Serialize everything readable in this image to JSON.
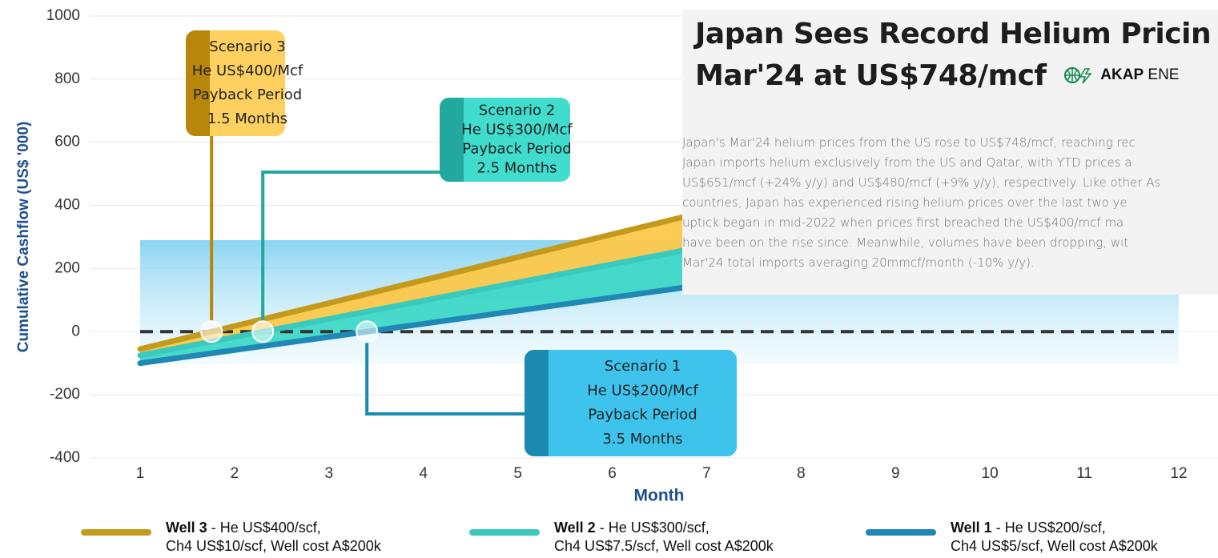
{
  "chart_data": {
    "type": "line",
    "y_label": "Cumulative Cashflow (US$ '000)",
    "x_label": "Month",
    "x": [
      1,
      12
    ],
    "xlim": [
      1,
      12
    ],
    "xticks": [
      1,
      2,
      3,
      4,
      5,
      6,
      7,
      8,
      9,
      10,
      11,
      12
    ],
    "ylim": [
      -400,
      1000
    ],
    "yticks": [
      -400,
      -200,
      0,
      200,
      400,
      600,
      800,
      1000
    ],
    "grid": true,
    "series": [
      {
        "name": "Well 3",
        "description": "- He US$400/scf,",
        "description2": "Ch4 US$10/scf, Well cost A$200k",
        "color": "#c49a1c",
        "fill": "#fcc84a",
        "values": [
          -55,
          745
        ]
      },
      {
        "name": "Well 2",
        "description": "- He US$300/scf,",
        "description2": "Ch4 US$7.5/scf, Well cost A$200k",
        "color": "#3cc9bd",
        "fill": "#3fd8c8",
        "values": [
          -75,
          560
        ]
      },
      {
        "name": "Well 1",
        "description": "- He US$200/scf,",
        "description2": "Ch4 US$5/scf, Well cost A$200k",
        "color": "#1f88b5",
        "fill": "#8fd3ee",
        "values": [
          -100,
          358
        ]
      }
    ],
    "annotations": [
      {
        "lines": [
          "Scenario 3",
          "He US$400/Mcf",
          "Payback Period",
          "1.5 Months"
        ],
        "color": "#fdd060",
        "strip": "#b8860b"
      },
      {
        "lines": [
          "Scenario 2",
          "He US$300/Mcf",
          "Payback Period",
          "2.5 Months"
        ],
        "color": "#40dccd",
        "strip": "#22a89e"
      },
      {
        "lines": [
          "Scenario 1",
          "He US$200/Mcf",
          "Payback Period",
          "3.5 Months"
        ],
        "color": "#3ec4ec",
        "strip": "#1a8ab0"
      }
    ]
  },
  "overlay": {
    "title": [
      "Japan Sees Record Helium Pricin",
      "Mar'24 at US$748/mcf"
    ],
    "logo": [
      "AKAP",
      "ENE"
    ],
    "body": [
      "Japan's Mar'24 helium prices from the US rose to US$748/mcf, reaching rec",
      "Japan imports helium exclusively from the US and Qatar, with YTD prices a",
      "US$651/mcf (+24% y/y) and US$480/mcf (+9% y/y), respectively. Like other As",
      "countries, Japan has experienced rising helium prices over the last two ye",
      "uptick began in mid-2022 when prices first breached the US$400/mcf ma",
      "have been on the rise since. Meanwhile, volumes have been dropping, wit",
      "Mar'24 total imports averaging 20mmcf/month (-10% y/y)."
    ]
  }
}
